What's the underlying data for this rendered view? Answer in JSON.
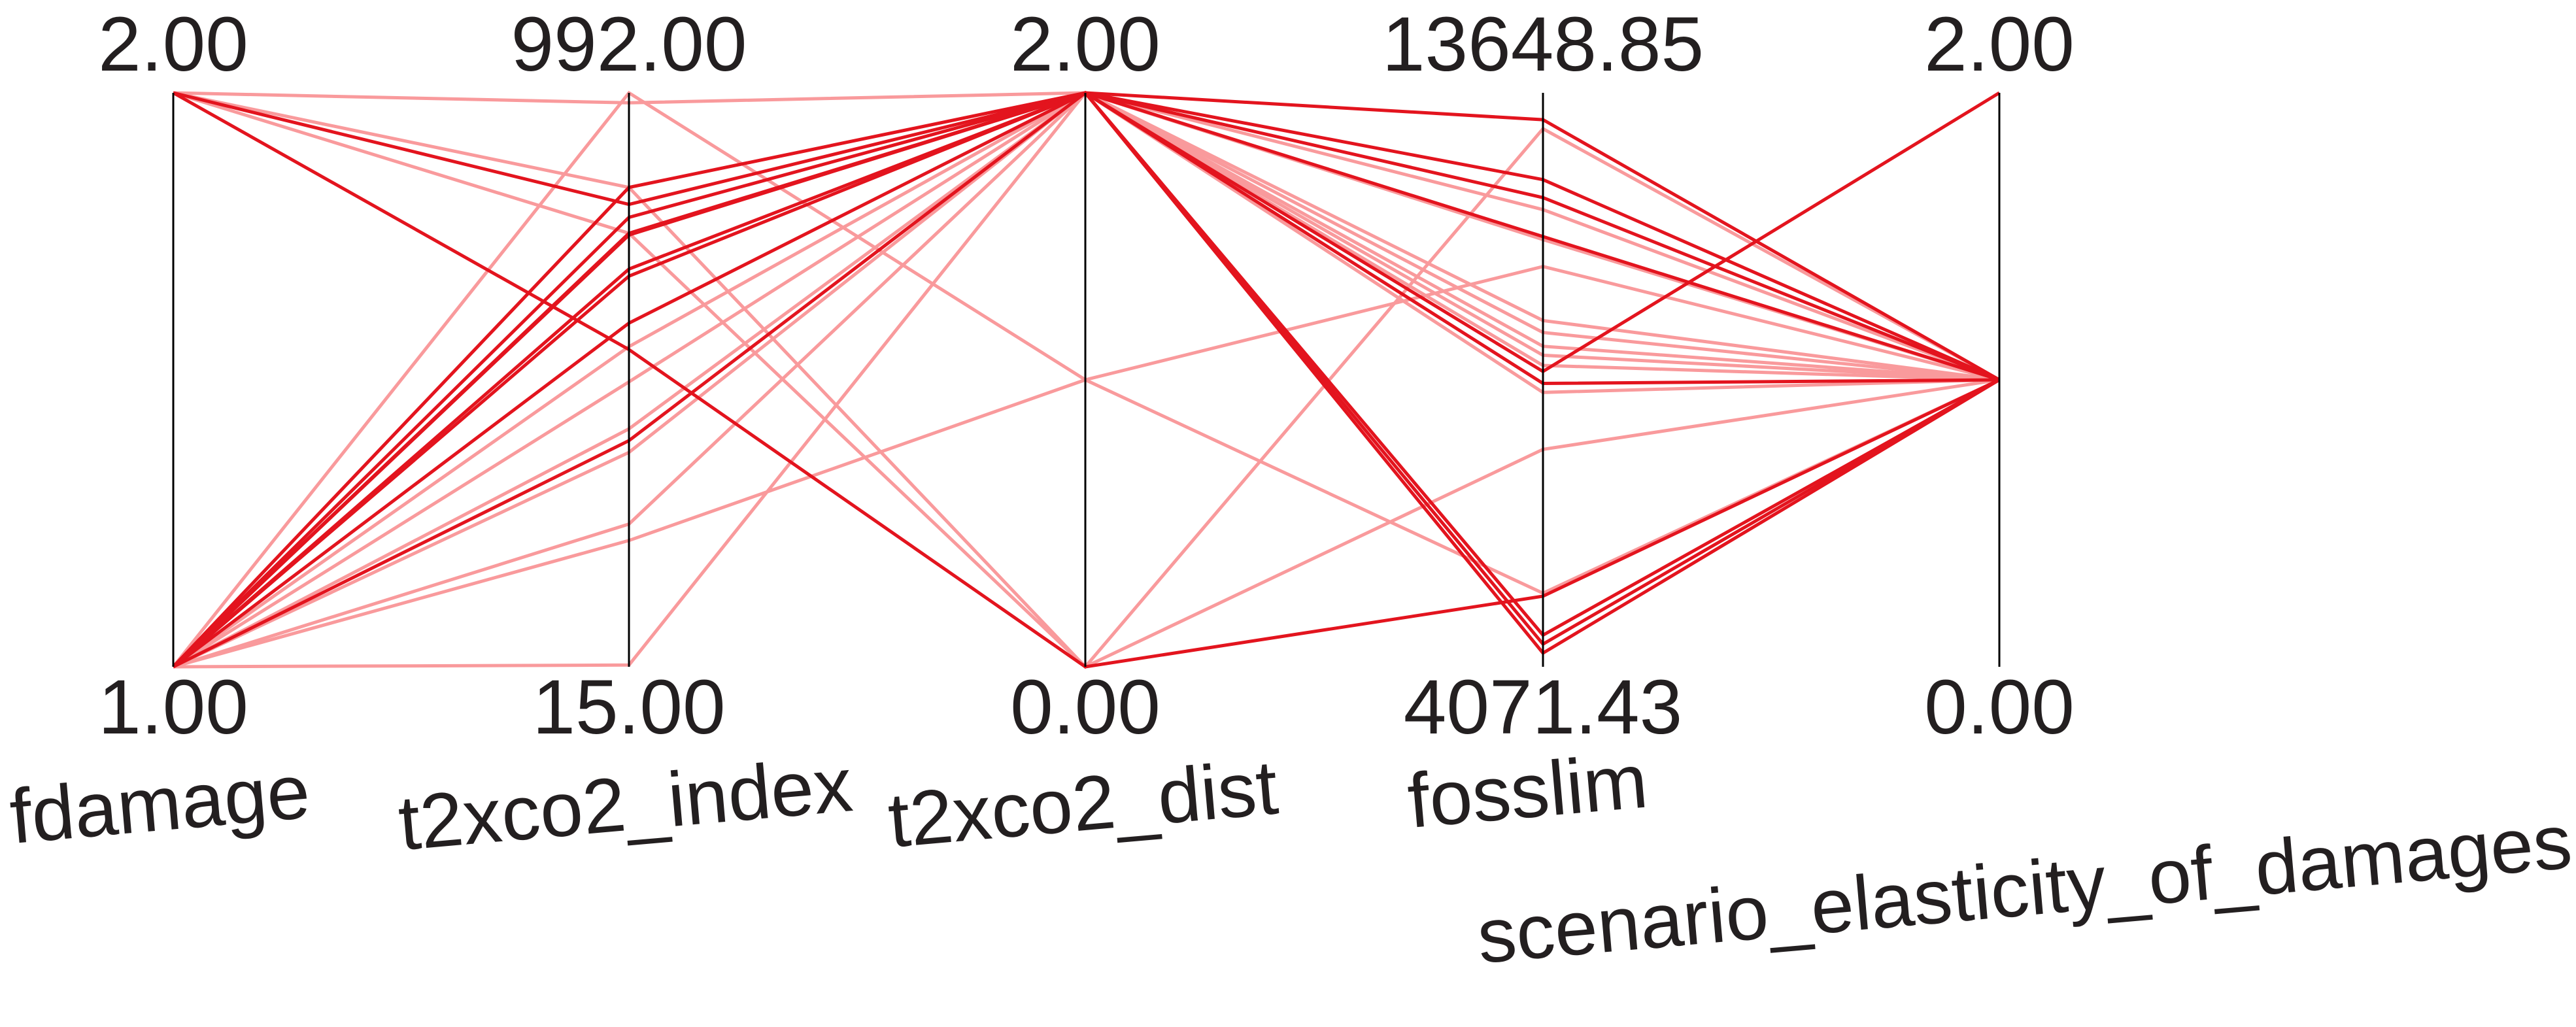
{
  "chart_data": {
    "type": "parallel_coordinates",
    "axes": [
      {
        "name": "fdamage",
        "max_label": "2.00",
        "min_label": "1.00",
        "max": 2,
        "min": 1
      },
      {
        "name": "t2xco2_index",
        "max_label": "992.00",
        "min_label": "15.00",
        "max": 992,
        "min": 15
      },
      {
        "name": "t2xco2_dist",
        "max_label": "2.00",
        "min_label": "0.00",
        "max": 2,
        "min": 0
      },
      {
        "name": "fosslim",
        "max_label": "13648.85",
        "min_label": "4071.43",
        "max": 13648.85,
        "min": 4071.43
      },
      {
        "name": "scenario_elasticity_of_damages",
        "max_label": "2.00",
        "min_label": "0.00",
        "max": 2,
        "min": 0
      }
    ],
    "colors": {
      "dark": "#e3141e",
      "light": "#f99a9c",
      "axis": "#000000"
    },
    "series": [
      {
        "shade": "light",
        "values": [
          2,
          975,
          2,
          11700,
          1
        ]
      },
      {
        "shade": "light",
        "values": [
          2,
          831,
          2,
          11200,
          1
        ]
      },
      {
        "shade": "light",
        "values": [
          2,
          753,
          0,
          7700,
          1
        ]
      },
      {
        "shade": "dark",
        "values": [
          2,
          802,
          2,
          11250,
          1
        ]
      },
      {
        "shade": "dark",
        "values": [
          2,
          555,
          0,
          5250,
          1
        ]
      },
      {
        "shade": "light",
        "values": [
          1,
          992,
          1,
          5300,
          1
        ]
      },
      {
        "shade": "light",
        "values": [
          1,
          831,
          0,
          13050,
          1
        ]
      },
      {
        "shade": "dark",
        "values": [
          1,
          831,
          2,
          13200,
          1
        ]
      },
      {
        "shade": "dark",
        "values": [
          1,
          780,
          2,
          11900,
          1
        ]
      },
      {
        "shade": "dark",
        "values": [
          1,
          753,
          2,
          8800,
          1
        ]
      },
      {
        "shade": "dark",
        "values": [
          1,
          692,
          2,
          4300,
          1
        ]
      },
      {
        "shade": "light",
        "values": [
          1,
          230,
          1,
          10750,
          1
        ]
      },
      {
        "shade": "light",
        "values": [
          1,
          258,
          2,
          9850,
          1
        ]
      },
      {
        "shade": "light",
        "values": [
          1,
          18,
          2,
          9650,
          1
        ]
      },
      {
        "shade": "dark",
        "values": [
          1,
          750,
          2,
          12200,
          1
        ]
      },
      {
        "shade": "dark",
        "values": [
          1,
          400,
          2,
          9000,
          2
        ]
      },
      {
        "shade": "dark",
        "values": [
          1,
          600,
          2,
          4600,
          1
        ]
      },
      {
        "shade": "dark",
        "values": [
          1,
          680,
          2,
          4450,
          1
        ]
      },
      {
        "shade": "light",
        "values": [
          1,
          560,
          2,
          9420,
          1
        ]
      },
      {
        "shade": "light",
        "values": [
          1,
          500,
          2,
          9270,
          1
        ]
      },
      {
        "shade": "light",
        "values": [
          1,
          420,
          2,
          8650,
          1
        ]
      },
      {
        "shade": "light",
        "values": [
          1,
          380,
          2,
          9100,
          1
        ]
      }
    ]
  }
}
